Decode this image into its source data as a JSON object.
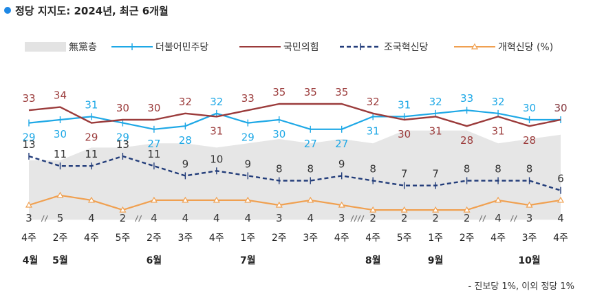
{
  "title": "정당 지지도: 2024년, 최근 6개월",
  "legend": [
    {
      "name": "無黨층",
      "color": "#e3e3e3",
      "style": "area"
    },
    {
      "name": "더불어민주당",
      "color": "#1ea8e6",
      "style": "solid-cross"
    },
    {
      "name": "국민의힘",
      "color": "#9b3b3b",
      "style": "solid"
    },
    {
      "name": "조국혁신당",
      "color": "#233d7a",
      "style": "dashed-cross"
    },
    {
      "name": "개혁신당 (%)",
      "color": "#f0a050",
      "style": "solid-triangle"
    }
  ],
  "footnote": "- 진보당 1%, 이외 정당 1%",
  "chart_data": {
    "type": "line",
    "weeks": [
      "4주",
      "2주",
      "4주",
      "5주",
      "2주",
      "3주",
      "4주",
      "1주",
      "2주",
      "3주",
      "4주",
      "4주",
      "5주",
      "1주",
      "2주",
      "4주",
      "3주",
      "4주"
    ],
    "months": [
      {
        "label": "4월",
        "at": 0
      },
      {
        "label": "5월",
        "at": 1
      },
      {
        "label": "6월",
        "at": 4
      },
      {
        "label": "7월",
        "at": 7
      },
      {
        "label": "8월",
        "at": 11
      },
      {
        "label": "9월",
        "at": 13
      },
      {
        "label": "10월",
        "at": 16
      }
    ],
    "breaks": [
      0.5,
      3.5,
      10.5,
      14.5,
      15.5
    ],
    "series": [
      {
        "name": "무당층",
        "type": "area",
        "values": [
          25,
          25,
          28,
          28,
          29,
          29,
          28,
          29,
          30,
          29,
          30,
          29,
          32,
          32,
          32,
          29,
          30,
          31
        ]
      },
      {
        "name": "더불어민주당",
        "values": [
          29,
          30,
          31,
          29,
          27,
          28,
          32,
          29,
          30,
          27,
          27,
          31,
          31,
          32,
          33,
          32,
          30,
          30
        ]
      },
      {
        "name": "국민의힘",
        "values": [
          33,
          34,
          29,
          30,
          30,
          32,
          31,
          33,
          35,
          35,
          35,
          32,
          30,
          31,
          28,
          31,
          28,
          30
        ]
      },
      {
        "name": "조국혁신당",
        "values": [
          13,
          11,
          11,
          13,
          11,
          9,
          10,
          9,
          8,
          8,
          9,
          8,
          7,
          7,
          8,
          8,
          8,
          6
        ]
      },
      {
        "name": "개혁신당",
        "values": [
          3,
          5,
          4,
          2,
          4,
          4,
          4,
          4,
          3,
          4,
          3,
          2,
          2,
          2,
          2,
          4,
          3,
          4
        ]
      }
    ]
  }
}
